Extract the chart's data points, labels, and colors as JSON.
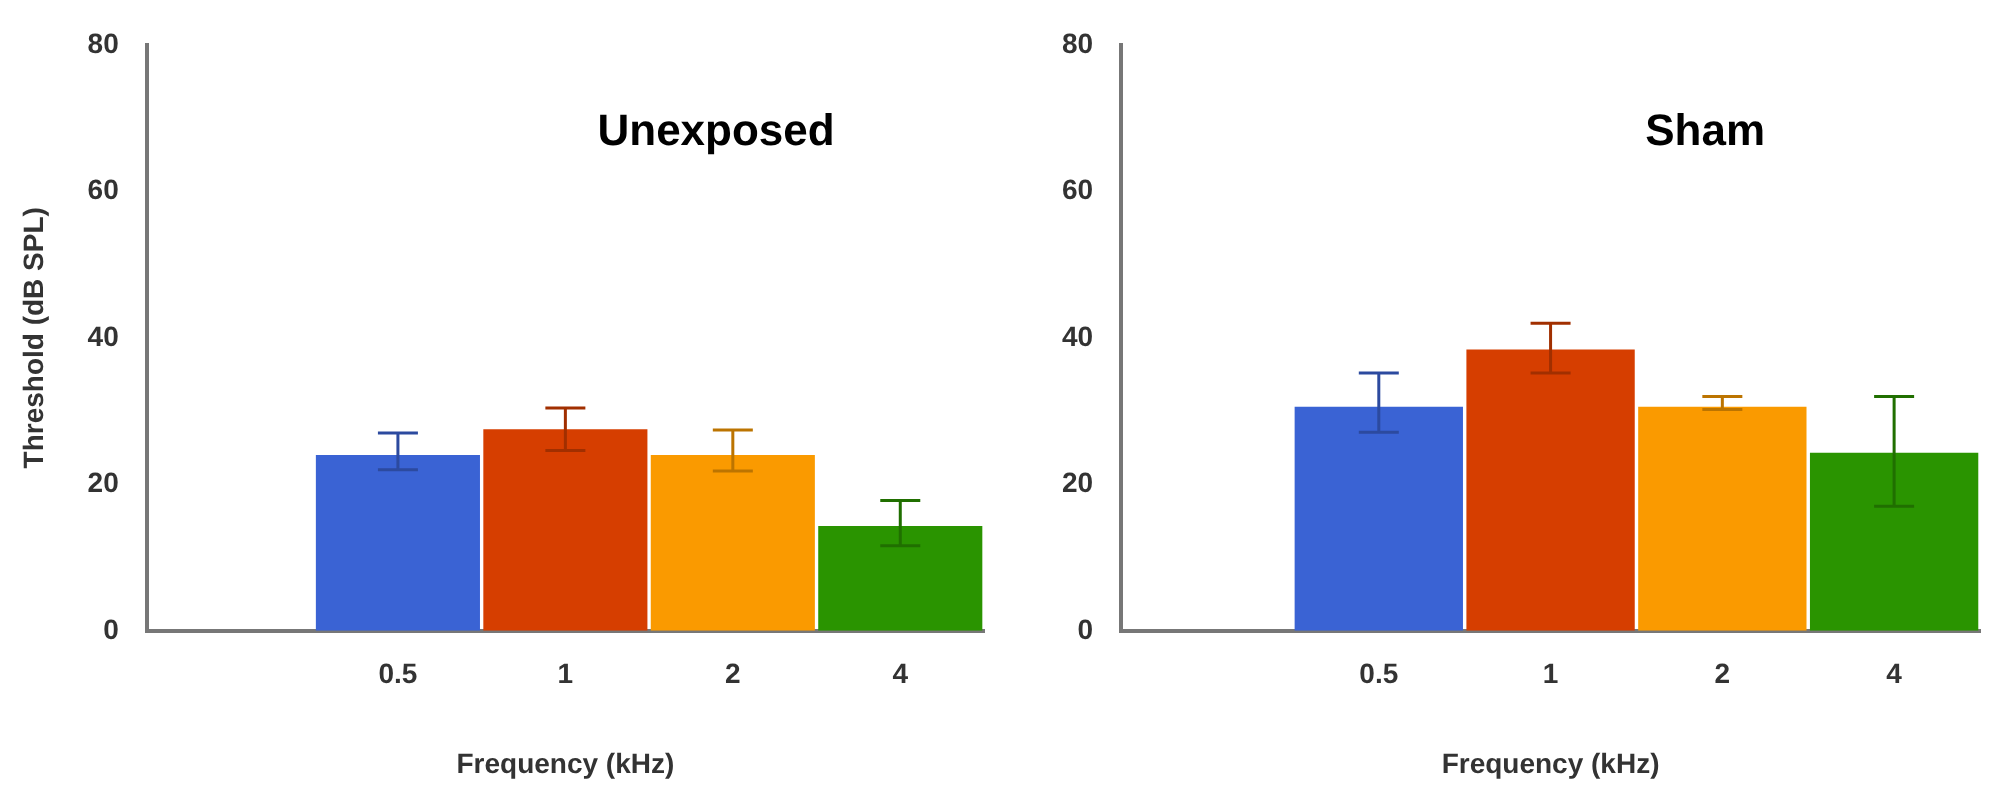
{
  "chart_data": [
    {
      "type": "bar",
      "title": "Unexposed",
      "xlabel": "Frequency (kHz)",
      "ylabel": "Threshold (dB SPL)",
      "categories": [
        null,
        "0.5",
        "1",
        "2",
        "4"
      ],
      "values": [
        null,
        24,
        27.5,
        24,
        14.3
      ],
      "colors": [
        "#3a63d4",
        "#3a63d4",
        "#d63e00",
        "#fa9a00",
        "#2a9400"
      ],
      "errors": [
        null,
        [
          22,
          27
        ],
        [
          24.6,
          30.4
        ],
        [
          21.8,
          27.4
        ],
        [
          11.6,
          17.8
        ]
      ],
      "ylim": [
        0,
        80
      ],
      "yticks": [
        0,
        20,
        40,
        60,
        80
      ],
      "grid": false,
      "legend": false
    },
    {
      "type": "bar",
      "title": "Sham",
      "xlabel": "Frequency (kHz)",
      "categories": [
        null,
        "0.5",
        "1",
        "2",
        "4"
      ],
      "values": [
        null,
        30.6,
        38.4,
        30.6,
        24.3
      ],
      "colors": [
        "#3a63d4",
        "#3a63d4",
        "#d63e00",
        "#fa9a00",
        "#2a9400"
      ],
      "errors": [
        null,
        [
          27.1,
          35.2
        ],
        [
          35.2,
          42
        ],
        [
          30.2,
          32
        ],
        [
          17,
          32
        ]
      ],
      "ylim": [
        0,
        80
      ],
      "yticks": [
        0,
        20,
        40,
        60,
        80
      ],
      "grid": false,
      "legend": false
    }
  ]
}
